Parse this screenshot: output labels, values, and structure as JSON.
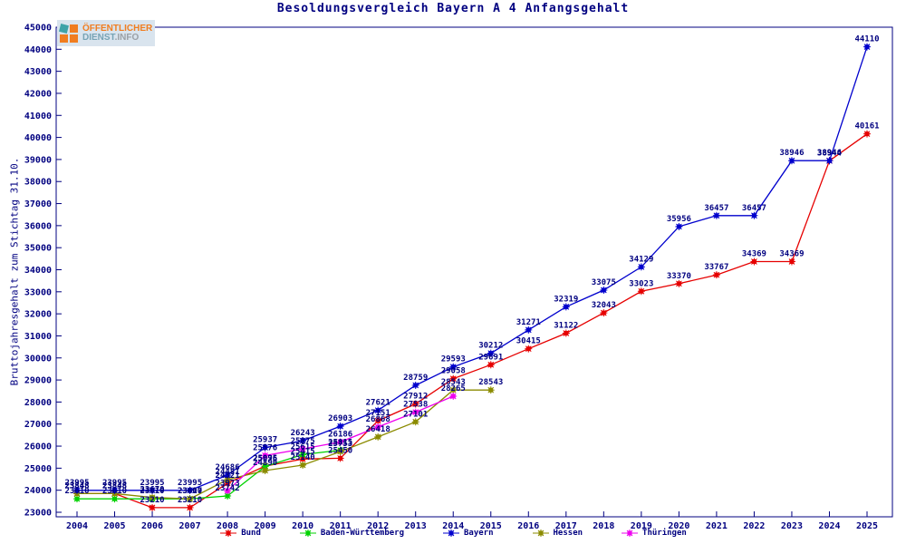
{
  "title": "Besoldungsvergleich Bayern A 4 Anfangsgehalt",
  "logo": {
    "line1": "ÖFFENTLICHER",
    "line2_primary": "DIENST",
    "line2_secondary": ".INFO"
  },
  "colors": {
    "text": "#000080",
    "axis": "#000080",
    "background": "#ffffff",
    "bund": "#e60000",
    "baden_wuerttemberg": "#00d200",
    "bayern": "#0000cd",
    "hessen": "#8b8b00",
    "thueringen": "#ee00ee"
  },
  "chart_data": {
    "type": "line",
    "title": "Besoldungsvergleich Bayern A 4 Anfangsgehalt",
    "xlabel": "",
    "ylabel": "Bruttojahresgehalt zum Stichtag 31.10.",
    "ylim": [
      23000,
      45000
    ],
    "ytick_step": 1000,
    "grid": false,
    "legend_position": "bottom",
    "point_labels": true,
    "x": [
      2004,
      2005,
      2006,
      2007,
      2008,
      2009,
      2010,
      2011,
      2012,
      2013,
      2014,
      2015,
      2016,
      2017,
      2018,
      2019,
      2020,
      2021,
      2022,
      2023,
      2024,
      2025
    ],
    "series": [
      {
        "name": "Bund",
        "color": "#e60000",
        "values": [
          23848,
          23848,
          23210,
          23210,
          24321,
          25095,
          25415,
          25450,
          27151,
          27912,
          29058,
          29691,
          30415,
          31122,
          32043,
          33023,
          33370,
          33767,
          34369,
          34369,
          38944,
          40161
        ]
      },
      {
        "name": "Baden-Württemberg",
        "color": "#00d200",
        "values": [
          23610,
          23610,
          23610,
          23610,
          23742,
          25076,
          25615,
          25815,
          null,
          null,
          null,
          null,
          null,
          null,
          null,
          null,
          null,
          null,
          null,
          null,
          null,
          null
        ]
      },
      {
        "name": "Bayern",
        "color": "#0000cd",
        "values": [
          23995,
          23995,
          23995,
          23995,
          24686,
          25937,
          26243,
          26903,
          27621,
          28759,
          29593,
          30212,
          31271,
          32319,
          33075,
          34129,
          35956,
          36457,
          36457,
          38946,
          38946,
          44110
        ]
      },
      {
        "name": "Hessen",
        "color": "#8b8b00",
        "values": [
          23848,
          23848,
          23670,
          23607,
          24481,
          24890,
          25140,
          25753,
          26418,
          27101,
          28543,
          28543,
          null,
          null,
          null,
          null,
          null,
          null,
          null,
          null,
          null,
          null
        ]
      },
      {
        "name": "Thüringen",
        "color": "#ee00ee",
        "values": [
          null,
          null,
          null,
          null,
          23973,
          25576,
          25875,
          26186,
          26868,
          27538,
          28265,
          null,
          null,
          null,
          null,
          null,
          null,
          null,
          null,
          null,
          null,
          null
        ]
      }
    ]
  }
}
